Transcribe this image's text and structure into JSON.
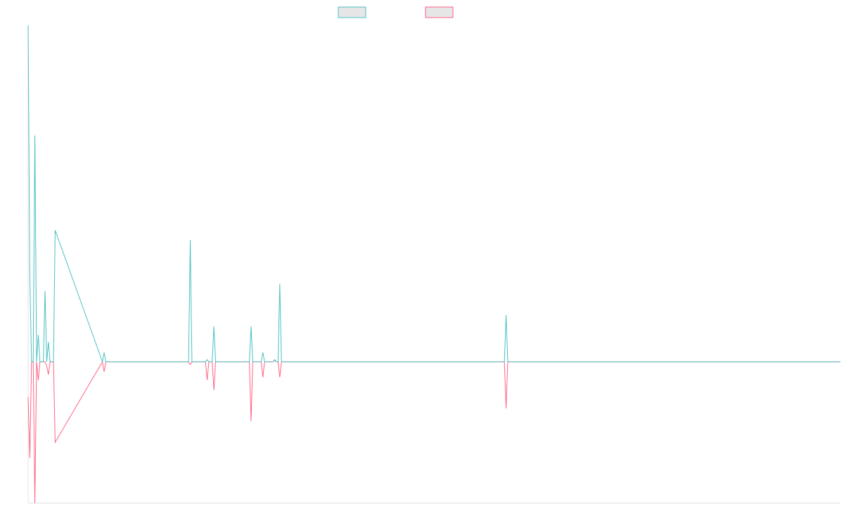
{
  "chart_data": {
    "type": "line",
    "x": [
      0,
      1,
      2,
      3,
      4,
      5,
      6,
      7,
      8,
      9,
      10,
      11,
      12,
      13,
      14,
      15,
      16,
      44,
      45,
      46,
      95,
      96,
      97,
      105,
      106,
      107,
      108,
      109,
      110,
      111,
      131,
      132,
      133,
      138,
      139,
      140,
      145,
      146,
      147,
      148,
      149,
      150,
      282,
      283,
      284,
      481
    ],
    "series": [
      {
        "color": "#ff6384",
        "values": [
          -25,
          -68,
          0,
          0,
          -100,
          0,
          -13,
          0,
          0,
          0,
          0,
          -3,
          -9,
          0,
          0,
          0,
          -57,
          0,
          -7,
          0,
          0,
          -2,
          0,
          0,
          -13,
          0,
          0,
          0,
          -20,
          0,
          0,
          -42,
          0,
          0,
          -11,
          0,
          0,
          1,
          0,
          0,
          -11,
          0,
          0,
          -33,
          0,
          0
        ]
      },
      {
        "color": "#4bc0c0",
        "values": [
          238,
          60,
          0,
          0,
          160,
          0,
          19,
          0,
          0,
          0,
          50,
          0,
          14,
          0,
          0,
          0,
          93,
          0,
          6.5,
          0,
          0,
          86,
          0,
          0,
          1.5,
          0,
          0,
          0,
          25,
          0,
          0,
          25,
          0,
          0,
          6.5,
          0,
          0,
          1.5,
          0,
          0,
          55,
          0,
          0,
          33,
          0,
          0
        ]
      }
    ],
    "xlim": [
      0,
      481
    ],
    "ylim": [
      -100,
      238
    ]
  }
}
